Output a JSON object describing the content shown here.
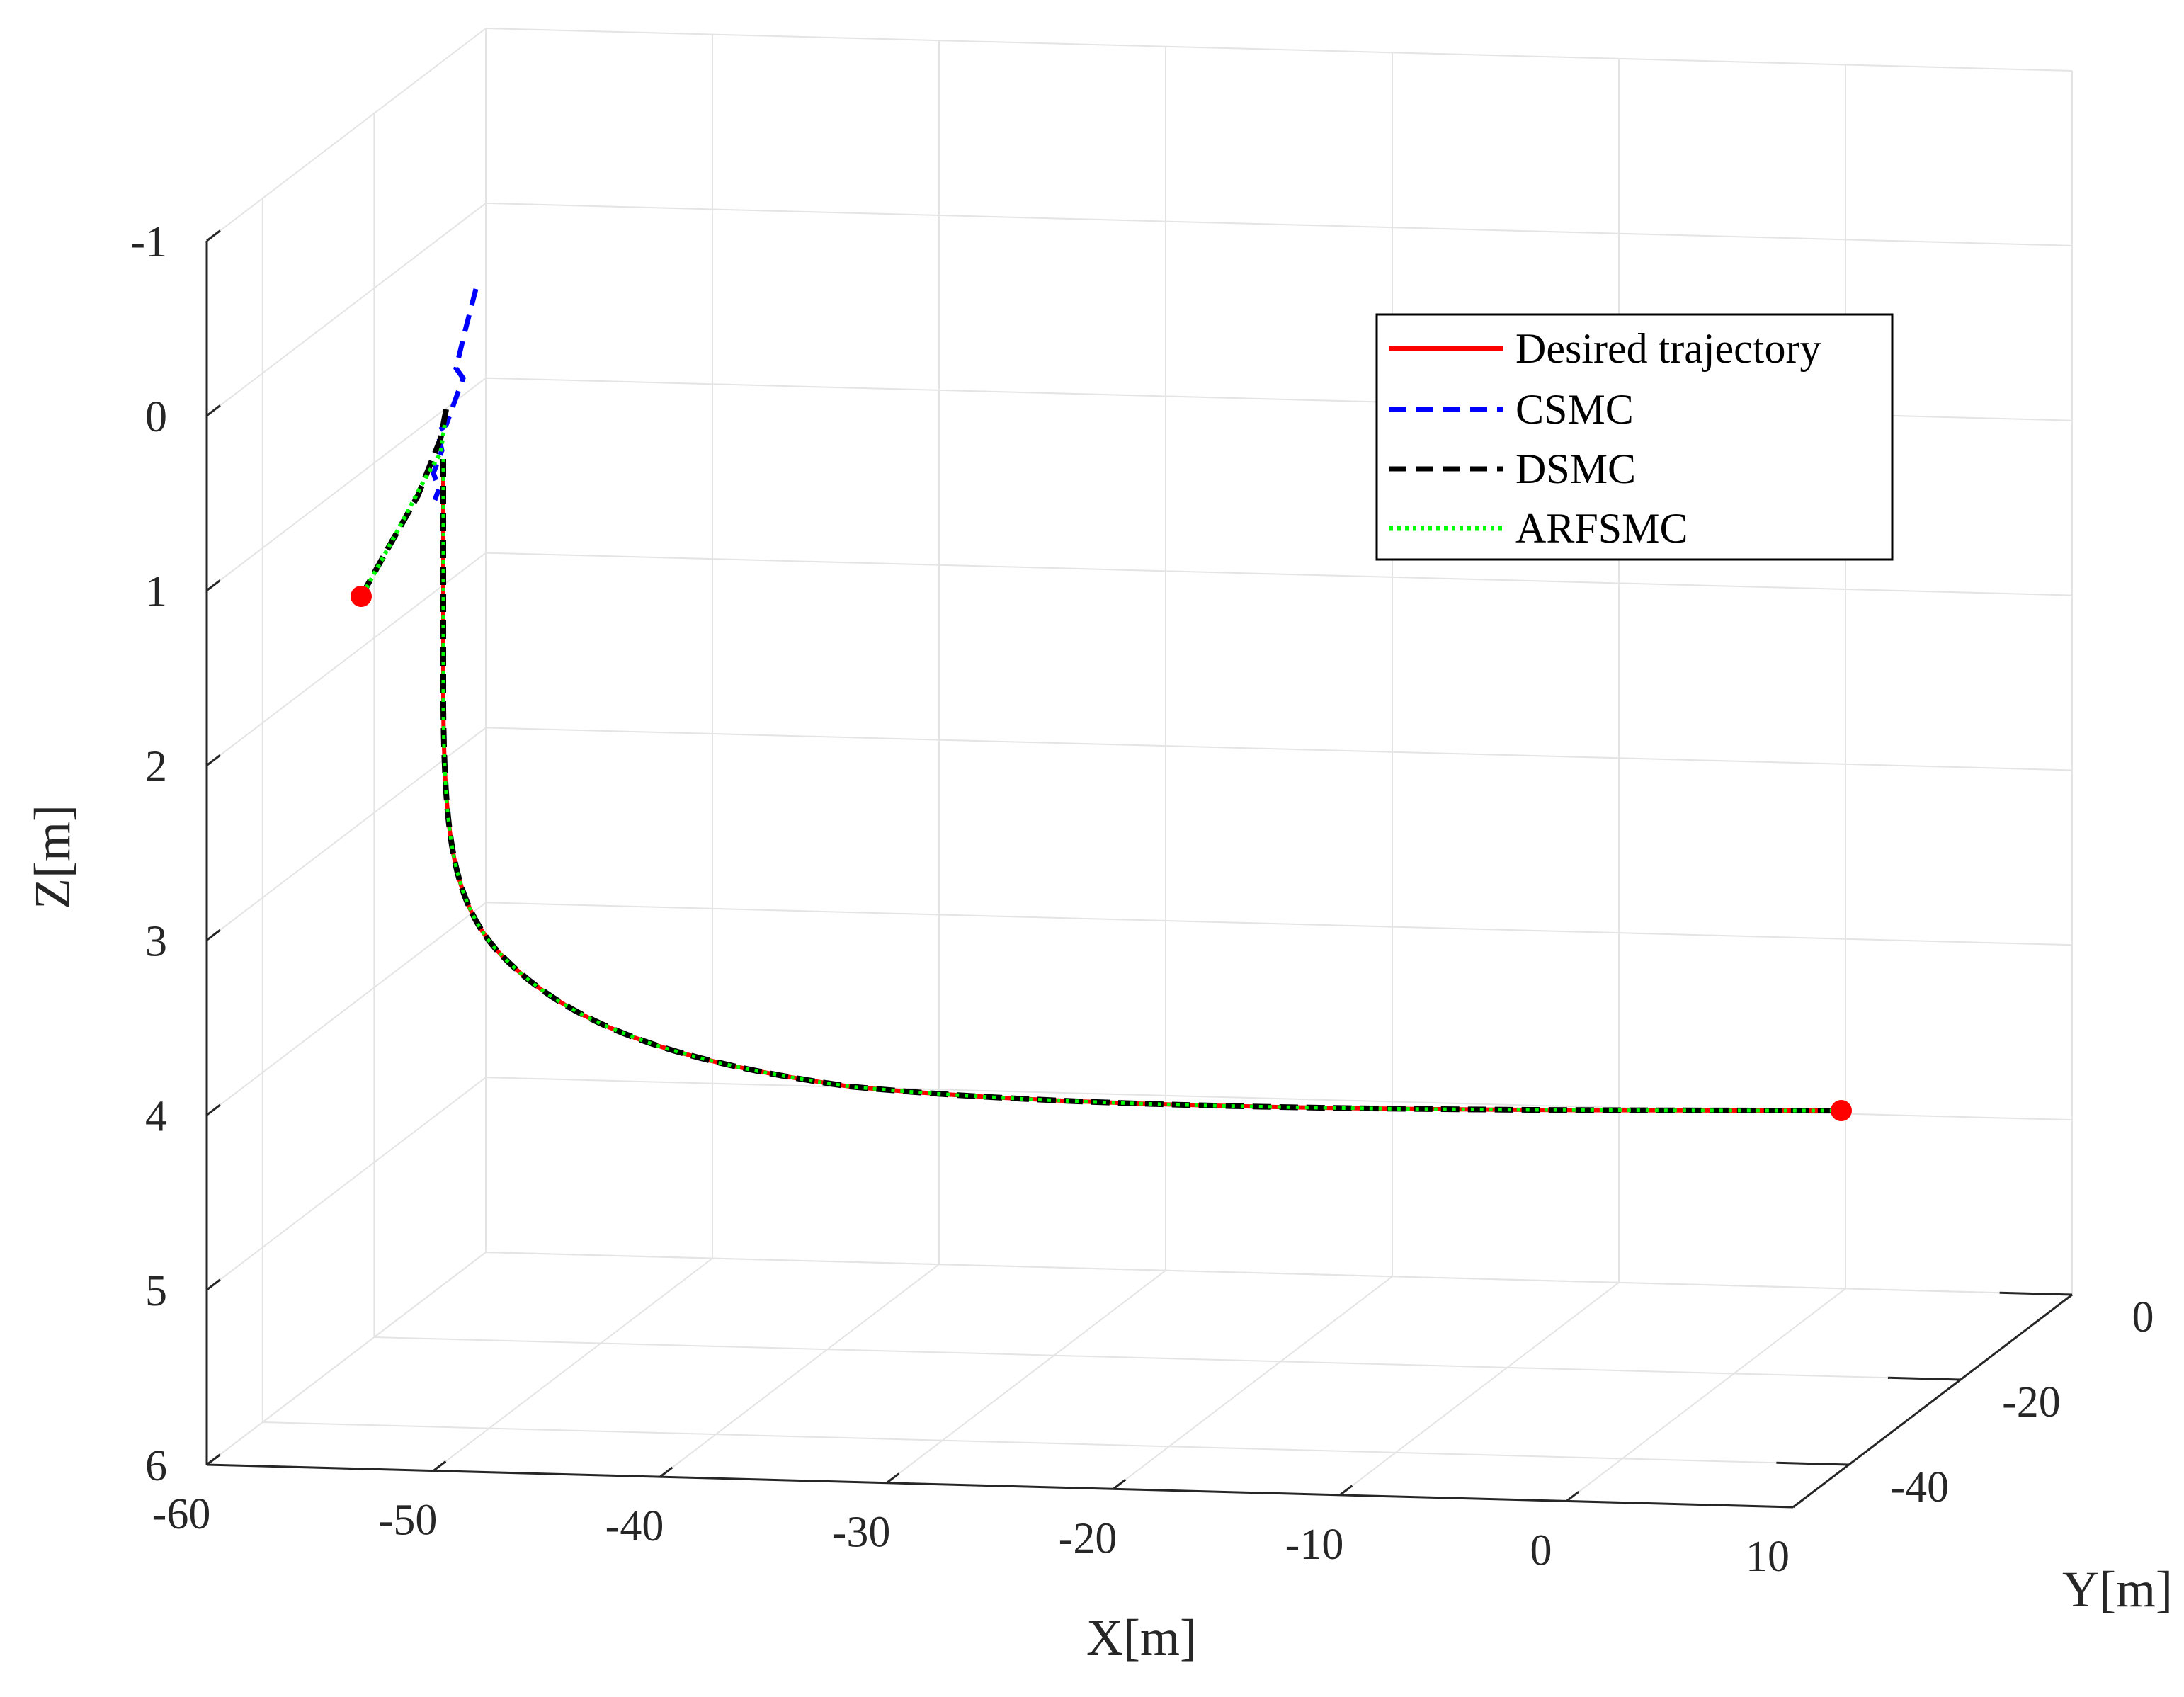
{
  "chart_data": {
    "type": "line3d",
    "xlabel": "X[m]",
    "ylabel": "Y[m]",
    "zlabel": "Z[m]",
    "x_ticks": [
      "-60",
      "-50",
      "-40",
      "-30",
      "-20",
      "-10",
      "0",
      "10"
    ],
    "y_ticks": [
      "0",
      "-20",
      "-40"
    ],
    "z_ticks": [
      "-1",
      "0",
      "1",
      "2",
      "3",
      "4",
      "5",
      "6"
    ],
    "xlim": [
      -60,
      10
    ],
    "ylim": [
      -50,
      0
    ],
    "zlim": [
      -1,
      6
    ],
    "z_reversed": true,
    "grid": true,
    "legend_position": "top-right",
    "colors": {
      "desired": "#ff0000",
      "csmc": "#0000ff",
      "dsmc": "#000000",
      "arfsmc": "#00ff00",
      "markers": "#ff0000"
    },
    "series": [
      {
        "name": "Desired trajectory",
        "style": "solid",
        "color": "#ff0000"
      },
      {
        "name": "CSMC",
        "style": "dashed",
        "color": "#0000ff"
      },
      {
        "name": "DSMC",
        "style": "dashed",
        "color": "#000000"
      },
      {
        "name": "ARFSMC",
        "style": "dotted",
        "color": "#00ff00"
      }
    ],
    "markers": [
      {
        "label": "start",
        "x": -52,
        "y": -30,
        "z": 1
      },
      {
        "label": "end",
        "x": 10,
        "y": 0,
        "z": 4
      }
    ]
  }
}
